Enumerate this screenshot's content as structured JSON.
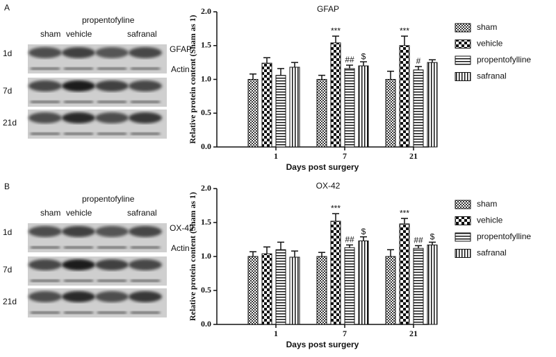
{
  "blots": [
    {
      "panel_label": "A",
      "header": "propentofyline",
      "lanes": [
        "sham",
        "vehicle",
        "safranal"
      ],
      "rows": [
        "1d",
        "7d",
        "21d"
      ],
      "markers": [
        "GFAP",
        "Actin"
      ]
    },
    {
      "panel_label": "B",
      "header": "propentofyline",
      "lanes": [
        "sham",
        "vehicle",
        "safranal"
      ],
      "rows": [
        "1d",
        "7d",
        "21d"
      ],
      "markers": [
        "OX-42",
        "Actin"
      ]
    }
  ],
  "chart_data": [
    {
      "type": "bar",
      "title": "GFAP",
      "x_label": "Days post surgery",
      "y_label": "Relative protein content (Sham as 1)",
      "categories": [
        "1",
        "7",
        "21"
      ],
      "ylim": [
        0,
        2
      ],
      "yticks": [
        {
          "value": 0,
          "label": "0.0"
        },
        {
          "value": 0.5,
          "label": "0.5"
        },
        {
          "value": 1,
          "label": "1.0"
        },
        {
          "value": 1.5,
          "label": "1.5"
        },
        {
          "value": 2,
          "label": "2.0"
        }
      ],
      "series": [
        {
          "name": "sham",
          "pattern": "checker",
          "values": [
            1.0,
            1.0,
            1.0
          ],
          "errors": [
            0.08,
            0.06,
            0.12
          ],
          "significance": [
            null,
            null,
            null
          ]
        },
        {
          "name": "vehicle",
          "pattern": "bigchecker",
          "values": [
            1.24,
            1.54,
            1.5
          ],
          "errors": [
            0.08,
            0.1,
            0.14
          ],
          "significance": [
            null,
            "***",
            "***"
          ]
        },
        {
          "name": "propentofylline",
          "pattern": "hstripe",
          "values": [
            1.06,
            1.16,
            1.14
          ],
          "errors": [
            0.1,
            0.05,
            0.05
          ],
          "significance": [
            null,
            "##",
            "#"
          ]
        },
        {
          "name": "safranal",
          "pattern": "vstripe",
          "values": [
            1.18,
            1.2,
            1.25
          ],
          "errors": [
            0.07,
            0.06,
            0.04
          ],
          "significance": [
            null,
            "$",
            null
          ]
        }
      ]
    },
    {
      "type": "bar",
      "title": "OX-42",
      "x_label": "Days post surgery",
      "y_label": "Relative protein content (Sham as 1)",
      "categories": [
        "1",
        "7",
        "21"
      ],
      "ylim": [
        0,
        2
      ],
      "yticks": [
        {
          "value": 0,
          "label": "0.0"
        },
        {
          "value": 0.5,
          "label": "0.5"
        },
        {
          "value": 1,
          "label": "1.0"
        },
        {
          "value": 1.5,
          "label": "1.5"
        },
        {
          "value": 2,
          "label": "2.0"
        }
      ],
      "series": [
        {
          "name": "sham",
          "pattern": "checker",
          "values": [
            1.0,
            1.0,
            1.0
          ],
          "errors": [
            0.07,
            0.06,
            0.1
          ],
          "significance": [
            null,
            null,
            null
          ]
        },
        {
          "name": "vehicle",
          "pattern": "bigchecker",
          "values": [
            1.04,
            1.52,
            1.48
          ],
          "errors": [
            0.1,
            0.11,
            0.08
          ],
          "significance": [
            null,
            "***",
            "***"
          ]
        },
        {
          "name": "propentofylline",
          "pattern": "hstripe",
          "values": [
            1.1,
            1.13,
            1.12
          ],
          "errors": [
            0.11,
            0.04,
            0.04
          ],
          "significance": [
            null,
            "##",
            "##"
          ]
        },
        {
          "name": "safranal",
          "pattern": "vstripe",
          "values": [
            0.99,
            1.23,
            1.17
          ],
          "errors": [
            0.09,
            0.06,
            0.04
          ],
          "significance": [
            null,
            "$",
            "$"
          ]
        }
      ]
    }
  ]
}
